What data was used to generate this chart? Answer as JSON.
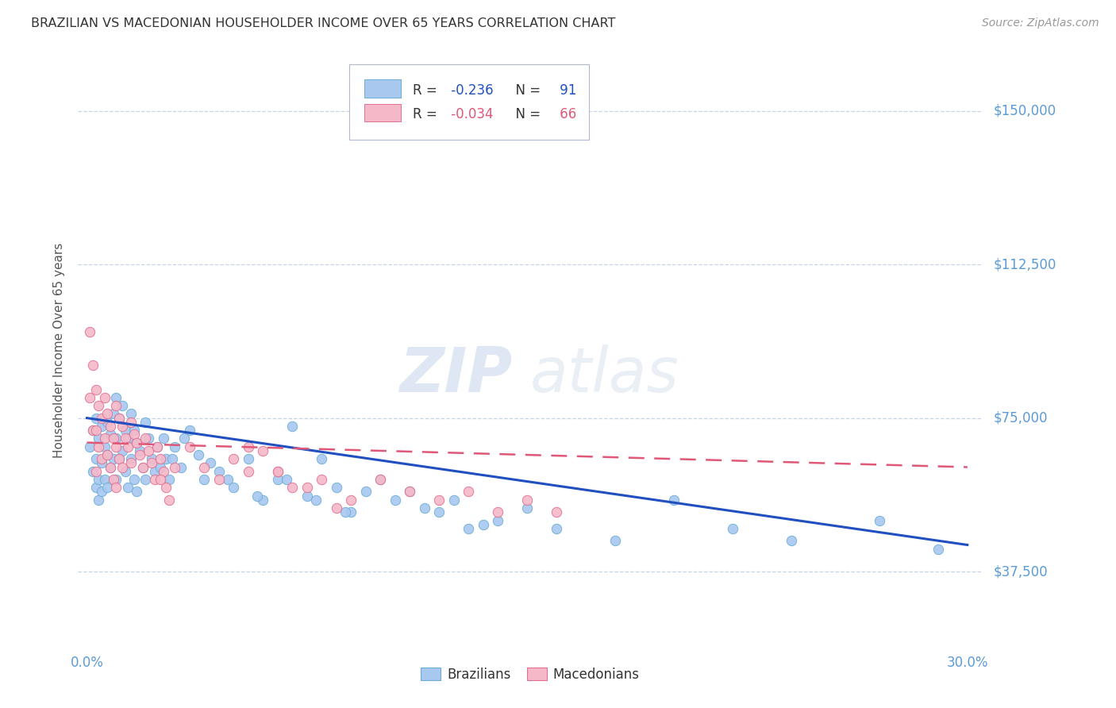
{
  "title": "BRAZILIAN VS MACEDONIAN HOUSEHOLDER INCOME OVER 65 YEARS CORRELATION CHART",
  "source": "Source: ZipAtlas.com",
  "ylabel": "Householder Income Over 65 years",
  "brazil_color": "#a8c8f0",
  "brazil_edge": "#6aaed6",
  "mac_color": "#f5b8c8",
  "mac_edge": "#e07090",
  "brazil_line_color": "#2050c0",
  "mac_line_color": "#e05878",
  "brazil_R": -0.236,
  "brazil_N": 91,
  "mac_R": -0.034,
  "mac_N": 66,
  "legend_label_brazil": "Brazilians",
  "legend_label_mac": "Macedonians",
  "watermark_zip": "ZIP",
  "watermark_atlas": "atlas",
  "background_color": "#ffffff",
  "grid_color": "#c8d4e8",
  "title_color": "#333333",
  "right_axis_color": "#5b9bd5",
  "tick_color": "#5b9bd5",
  "marker_size": 80,
  "xlim": [
    -0.3,
    30.5
  ],
  "ylim": [
    18000,
    165000
  ],
  "yticks": [
    37500,
    75000,
    112500,
    150000
  ],
  "xticks": [
    0,
    30
  ],
  "xticklabels": [
    "0.0%",
    "30.0%"
  ],
  "brazil_line_x0": 0.0,
  "brazil_line_x1": 30.0,
  "brazil_line_y0": 75000,
  "brazil_line_y1": 44000,
  "mac_line_x0": 0.0,
  "mac_line_x1": 30.0,
  "mac_line_y0": 69000,
  "mac_line_y1": 63000,
  "brazil_scatter_x": [
    0.1,
    0.2,
    0.2,
    0.3,
    0.3,
    0.3,
    0.4,
    0.4,
    0.4,
    0.5,
    0.5,
    0.5,
    0.6,
    0.6,
    0.7,
    0.7,
    0.7,
    0.8,
    0.8,
    0.9,
    0.9,
    1.0,
    1.0,
    1.0,
    1.1,
    1.1,
    1.2,
    1.2,
    1.3,
    1.3,
    1.4,
    1.4,
    1.5,
    1.5,
    1.6,
    1.6,
    1.7,
    1.7,
    1.8,
    1.9,
    2.0,
    2.0,
    2.1,
    2.2,
    2.3,
    2.4,
    2.5,
    2.6,
    2.7,
    2.8,
    2.9,
    3.0,
    3.2,
    3.5,
    3.8,
    4.0,
    4.5,
    5.0,
    5.5,
    6.0,
    6.5,
    7.0,
    7.5,
    8.0,
    8.5,
    9.0,
    10.0,
    10.5,
    11.0,
    12.0,
    12.5,
    13.0,
    14.0,
    15.0,
    16.0,
    18.0,
    20.0,
    22.0,
    24.0,
    27.0,
    29.0,
    3.3,
    4.2,
    4.8,
    5.8,
    6.8,
    7.8,
    8.8,
    9.5,
    11.5,
    13.5
  ],
  "brazil_scatter_y": [
    68000,
    72000,
    62000,
    75000,
    65000,
    58000,
    70000,
    60000,
    55000,
    73000,
    64000,
    57000,
    68000,
    60000,
    74000,
    66000,
    58000,
    71000,
    63000,
    76000,
    65000,
    80000,
    70000,
    60000,
    75000,
    65000,
    78000,
    67000,
    72000,
    62000,
    70000,
    58000,
    76000,
    65000,
    72000,
    60000,
    69000,
    57000,
    67000,
    63000,
    74000,
    60000,
    70000,
    65000,
    62000,
    68000,
    63000,
    70000,
    65000,
    60000,
    65000,
    68000,
    63000,
    72000,
    66000,
    60000,
    62000,
    58000,
    65000,
    55000,
    60000,
    73000,
    56000,
    65000,
    58000,
    52000,
    60000,
    55000,
    57000,
    52000,
    55000,
    48000,
    50000,
    53000,
    48000,
    45000,
    55000,
    48000,
    45000,
    50000,
    43000,
    70000,
    64000,
    60000,
    56000,
    60000,
    55000,
    52000,
    57000,
    53000,
    49000
  ],
  "mac_scatter_x": [
    0.1,
    0.1,
    0.2,
    0.2,
    0.3,
    0.3,
    0.3,
    0.4,
    0.4,
    0.5,
    0.5,
    0.6,
    0.6,
    0.7,
    0.7,
    0.8,
    0.8,
    0.9,
    0.9,
    1.0,
    1.0,
    1.0,
    1.1,
    1.1,
    1.2,
    1.2,
    1.3,
    1.4,
    1.5,
    1.5,
    1.6,
    1.7,
    1.8,
    1.9,
    2.0,
    2.1,
    2.2,
    2.3,
    2.4,
    2.5,
    2.6,
    2.7,
    2.8,
    3.0,
    3.5,
    4.0,
    4.5,
    5.0,
    5.5,
    6.0,
    6.5,
    7.0,
    8.0,
    9.0,
    10.0,
    11.0,
    12.0,
    13.0,
    14.0,
    15.0,
    16.0,
    5.5,
    6.5,
    7.5,
    8.5,
    2.5
  ],
  "mac_scatter_y": [
    96000,
    80000,
    88000,
    72000,
    82000,
    72000,
    62000,
    78000,
    68000,
    75000,
    65000,
    80000,
    70000,
    76000,
    66000,
    73000,
    63000,
    70000,
    60000,
    78000,
    68000,
    58000,
    75000,
    65000,
    73000,
    63000,
    70000,
    68000,
    74000,
    64000,
    71000,
    69000,
    66000,
    63000,
    70000,
    67000,
    64000,
    60000,
    68000,
    65000,
    62000,
    58000,
    55000,
    63000,
    68000,
    63000,
    60000,
    65000,
    62000,
    67000,
    62000,
    58000,
    60000,
    55000,
    60000,
    57000,
    55000,
    57000,
    52000,
    55000,
    52000,
    68000,
    62000,
    58000,
    53000,
    60000
  ]
}
